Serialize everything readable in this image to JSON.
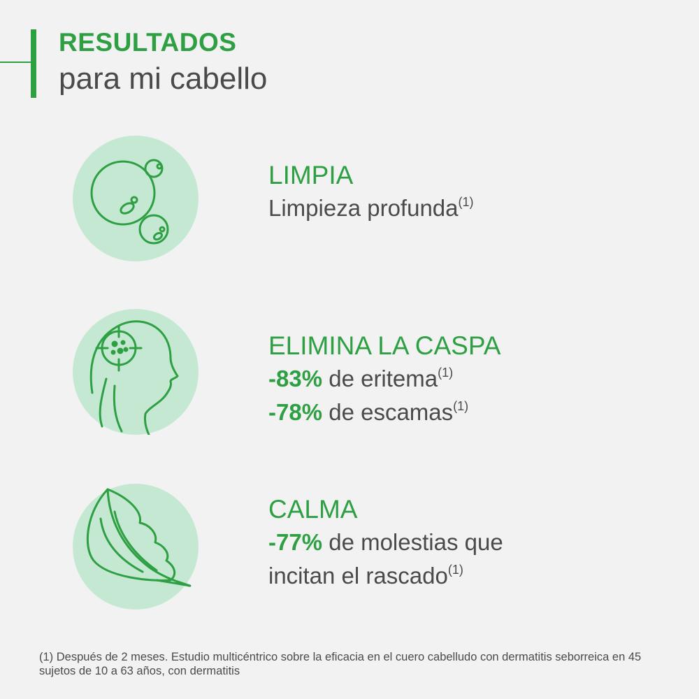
{
  "header": {
    "title_strong": "RESULTADOS",
    "title_light": "para mi cabello"
  },
  "benefits": [
    {
      "icon": "bubbles-icon",
      "heading": "LIMPIA",
      "lines": [
        {
          "pct": "",
          "text": "Limpieza profunda",
          "sup": "(1)"
        }
      ]
    },
    {
      "icon": "head-target-icon",
      "heading": "ELIMINA LA CASPA",
      "lines": [
        {
          "pct": "-83%",
          "text": " de eritema",
          "sup": "(1)"
        },
        {
          "pct": "-78%",
          "text": " de escamas",
          "sup": "(1)"
        }
      ]
    },
    {
      "icon": "feather-icon",
      "heading": "CALMA",
      "lines": [
        {
          "pct": "-77%",
          "text": " de molestias que",
          "sup": ""
        },
        {
          "pct": "",
          "text": "incitan el rascado",
          "sup": "(1)"
        }
      ]
    }
  ],
  "footnote": "(1) Después de 2 meses. Estudio multicéntrico sobre la eficacia en el cuero cabelludo con dermatitis seborreica en 45 sujetos de 10 a 63 años, con dermatitis",
  "colors": {
    "accent": "#2ea043",
    "circle": "#c4e8d2",
    "text": "#4a4a4a",
    "background": "#f2f2f2"
  }
}
